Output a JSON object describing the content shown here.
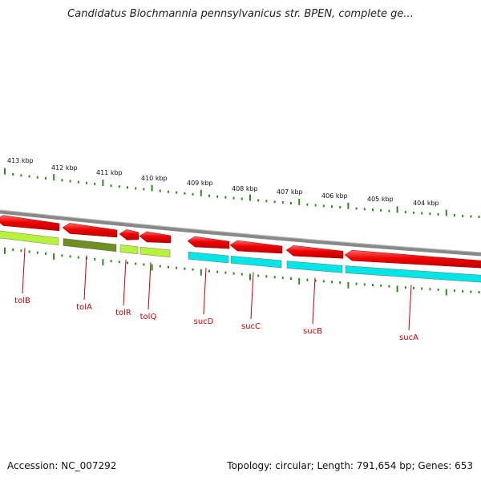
{
  "title": "Candidatus Blochmannia pennsylvanicus str. BPEN, complete ge...",
  "footer": {
    "accession": "Accession: NC_007292",
    "summary": "Topology: circular; Length: 791,654 bp; Genes: 653"
  },
  "kbp_labels": [
    "413 kbp",
    "412 kbp",
    "411 kbp",
    "410 kbp",
    "409 kbp",
    "408 kbp",
    "407 kbp",
    "406 kbp",
    "405 kbp",
    "404 kbp"
  ],
  "genes": [
    {
      "name": "tolB",
      "strand": "-",
      "feature_color": "#b9f23a"
    },
    {
      "name": "tolA",
      "strand": "-",
      "feature_color": "#6f8e23"
    },
    {
      "name": "tolR",
      "strand": "-",
      "feature_color": "#b9f23a"
    },
    {
      "name": "tolQ",
      "strand": "-",
      "feature_color": "#b9f23a"
    },
    {
      "name": "sucD",
      "strand": "-",
      "feature_color": "#00e6e6"
    },
    {
      "name": "sucC",
      "strand": "-",
      "feature_color": "#00e6e6"
    },
    {
      "name": "sucB",
      "strand": "-",
      "feature_color": "#00e6e6"
    },
    {
      "name": "sucA",
      "strand": "-",
      "feature_color": "#00e6e6"
    }
  ],
  "colors": {
    "cds": "#ee0000",
    "label": "#cc0000",
    "backbone": "#888888",
    "ticks": "#2e8b1e"
  }
}
